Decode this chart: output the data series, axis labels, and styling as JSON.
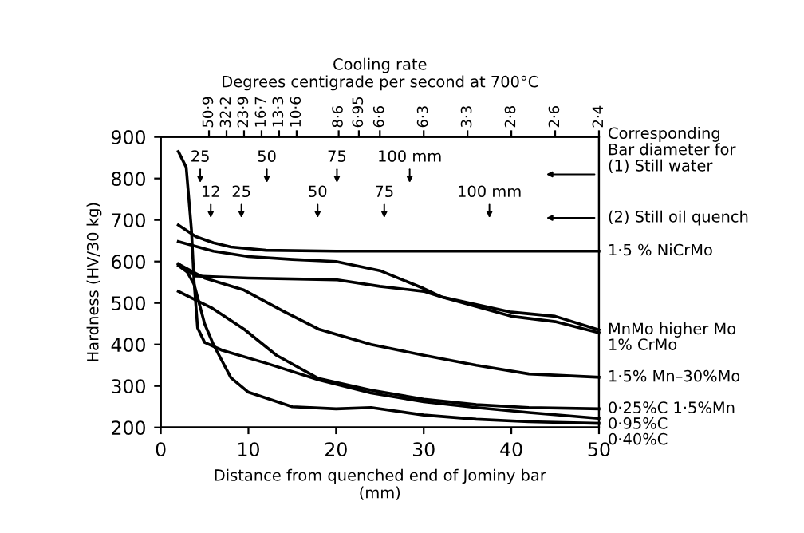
{
  "chart_data": {
    "type": "line",
    "xlabel": "Distance from quenched end of Jominy bar\n(mm)",
    "ylabel": "Hardness (HV/30 kg)",
    "x2label": "Cooling rate\nDegrees centigrade per second at 700°C",
    "xlim": [
      0,
      50
    ],
    "xticks": [
      0,
      10,
      20,
      30,
      40,
      50
    ],
    "ylim": [
      200,
      900
    ],
    "yticks": [
      200,
      300,
      400,
      500,
      600,
      700,
      800,
      900
    ],
    "grid": false,
    "legend": false,
    "marker": "none",
    "line_style": "solid",
    "series": [
      {
        "name": "1·5 % NiCrMo",
        "color": "#000000",
        "x": [
          2,
          4,
          6,
          8,
          12,
          20,
          50
        ],
        "values": [
          688,
          660,
          645,
          635,
          627,
          625,
          625
        ]
      },
      {
        "name": "MnMo higher Mo",
        "color": "#000000",
        "x": [
          2,
          4,
          10,
          20,
          25,
          30,
          32,
          40,
          45,
          50
        ],
        "values": [
          594,
          565,
          560,
          556,
          540,
          528,
          515,
          478,
          468,
          435
        ]
      },
      {
        "name": "1% CrMo",
        "color": "#000000",
        "x": [
          2,
          6,
          10,
          15,
          20,
          25,
          30,
          32,
          40,
          45,
          50
        ],
        "values": [
          648,
          625,
          612,
          605,
          600,
          578,
          535,
          515,
          468,
          455,
          428
        ]
      },
      {
        "name": "1·5% Mn–30%Mo",
        "color": "#000000",
        "x": [
          2,
          5,
          9.5,
          14,
          18,
          24,
          30,
          36,
          42,
          50
        ],
        "values": [
          594,
          560,
          531,
          480,
          437,
          400,
          374,
          350,
          329,
          321
        ]
      },
      {
        "name": "0·25%C 1·5%Mn",
        "color": "#000000",
        "x": [
          2,
          5.9,
          9.5,
          13.2,
          18,
          24,
          30,
          36,
          42,
          50
        ],
        "values": [
          528,
          487,
          437,
          374,
          318,
          290,
          268,
          255,
          248,
          245
        ]
      },
      {
        "name": "0·95%C",
        "color": "#000000",
        "x": [
          2,
          2.9,
          3.5,
          3.8,
          4.2,
          5,
          7,
          12,
          18,
          24,
          30,
          36,
          42,
          50
        ],
        "values": [
          865,
          827,
          676,
          550,
          440,
          405,
          386,
          355,
          315,
          283,
          262,
          248,
          236,
          222
        ]
      },
      {
        "name": "0·40%C",
        "color": "#000000",
        "x": [
          2,
          3,
          3.8,
          5,
          6,
          8,
          10,
          15,
          20,
          24,
          30,
          36,
          42,
          50
        ],
        "values": [
          590,
          575,
          545,
          450,
          400,
          320,
          285,
          250,
          245,
          248,
          230,
          220,
          214,
          210
        ]
      }
    ],
    "annotations": [
      "25",
      "50",
      "75",
      "100 mm",
      "12",
      "25",
      "50",
      "75",
      "100 mm",
      "Corresponding\nBar diameter for\n(1) Still water",
      "(2) Still oil quench",
      "50·9",
      "32·2",
      "23·9",
      "16·7",
      "13·3",
      "10·6",
      "8·6",
      "6·95",
      "6·6",
      "6·3",
      "3·3",
      "2·8",
      "2·6",
      "2·4"
    ]
  }
}
